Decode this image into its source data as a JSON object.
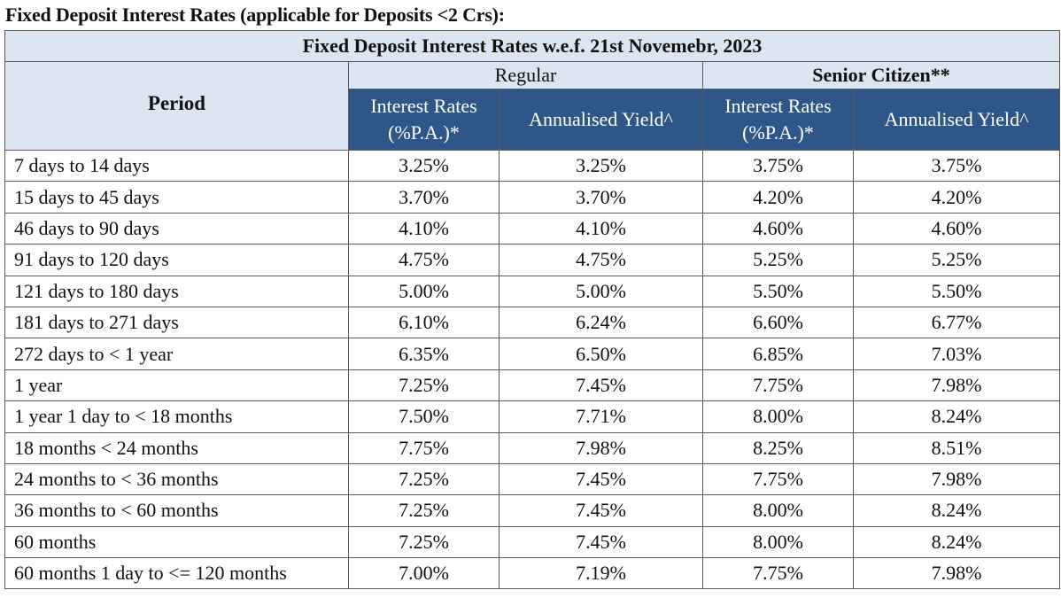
{
  "heading": "Fixed Deposit Interest Rates (applicable for Deposits <2 Crs):",
  "table": {
    "title": "Fixed Deposit Interest Rates w.e.f. 21st Novemebr, 2023",
    "period_header": "Period",
    "groups": {
      "regular": "Regular",
      "senior": "Senior Citizen**"
    },
    "sub_headers": {
      "interest_rates": "Interest Rates (%P.A.)*",
      "annualised_yield": "Annualised Yield^"
    },
    "rows": [
      {
        "period": "7 days to 14 days",
        "reg_rate": "3.25%",
        "reg_yield": "3.25%",
        "sr_rate": "3.75%",
        "sr_yield": "3.75%"
      },
      {
        "period": "15 days to 45 days",
        "reg_rate": "3.70%",
        "reg_yield": "3.70%",
        "sr_rate": "4.20%",
        "sr_yield": "4.20%"
      },
      {
        "period": "46 days to 90 days",
        "reg_rate": "4.10%",
        "reg_yield": "4.10%",
        "sr_rate": "4.60%",
        "sr_yield": "4.60%"
      },
      {
        "period": "91 days to 120 days",
        "reg_rate": "4.75%",
        "reg_yield": "4.75%",
        "sr_rate": "5.25%",
        "sr_yield": "5.25%"
      },
      {
        "period": "121 days to 180 days",
        "reg_rate": "5.00%",
        "reg_yield": "5.00%",
        "sr_rate": "5.50%",
        "sr_yield": "5.50%"
      },
      {
        "period": "181 days to 271 days",
        "reg_rate": "6.10%",
        "reg_yield": "6.24%",
        "sr_rate": "6.60%",
        "sr_yield": "6.77%"
      },
      {
        "period": "272 days to < 1 year",
        "reg_rate": "6.35%",
        "reg_yield": "6.50%",
        "sr_rate": "6.85%",
        "sr_yield": "7.03%"
      },
      {
        "period": "1 year",
        "reg_rate": "7.25%",
        "reg_yield": "7.45%",
        "sr_rate": "7.75%",
        "sr_yield": "7.98%"
      },
      {
        "period": "1 year 1 day to < 18 months",
        "reg_rate": "7.50%",
        "reg_yield": "7.71%",
        "sr_rate": "8.00%",
        "sr_yield": "8.24%"
      },
      {
        "period": "18 months < 24 months",
        "reg_rate": "7.75%",
        "reg_yield": "7.98%",
        "sr_rate": "8.25%",
        "sr_yield": "8.51%"
      },
      {
        "period": "24 months to < 36 months",
        "reg_rate": "7.25%",
        "reg_yield": "7.45%",
        "sr_rate": "7.75%",
        "sr_yield": "7.98%"
      },
      {
        "period": "36 months to < 60 months",
        "reg_rate": "7.25%",
        "reg_yield": "7.45%",
        "sr_rate": "8.00%",
        "sr_yield": "8.24%"
      },
      {
        "period": "60 months",
        "reg_rate": "7.25%",
        "reg_yield": "7.45%",
        "sr_rate": "8.00%",
        "sr_yield": "8.24%"
      },
      {
        "period": "60 months 1 day to <= 120 months",
        "reg_rate": "7.00%",
        "reg_yield": "7.19%",
        "sr_rate": "7.75%",
        "sr_yield": "7.98%"
      }
    ]
  },
  "colors": {
    "header_blue": "#2f5689",
    "header_light": "#dce6f2"
  }
}
